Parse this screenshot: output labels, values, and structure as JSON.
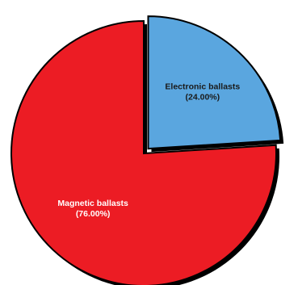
{
  "chart_data": {
    "type": "pie",
    "title": "",
    "slices": [
      {
        "label": "Electronic ballasts",
        "percent_label": "(24.00%)",
        "value": 24.0,
        "color": "#5aa6df",
        "text_color": "#1a1a1a",
        "exploded": true
      },
      {
        "label": "Magnetic ballasts",
        "percent_label": "(76.00%)",
        "value": 76.0,
        "color": "#ec1c24",
        "text_color": "#ffffff",
        "exploded": false
      }
    ],
    "start_angle": "top (12 o'clock), clockwise",
    "outline_color": "#000000"
  }
}
